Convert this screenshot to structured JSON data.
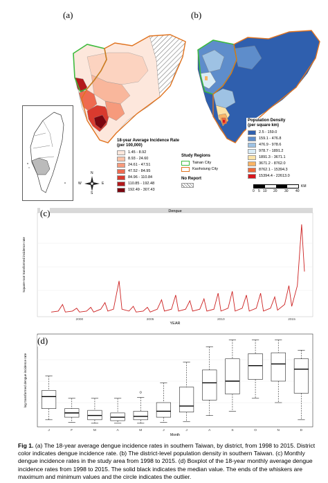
{
  "panels": {
    "a": "(a)",
    "b": "(b)",
    "c": "(c)",
    "d": "(d)"
  },
  "legend_a": {
    "title_line1": "18-year Average Incidence Rate",
    "title_line2": "(per 100,000)",
    "items": [
      {
        "label": "1.45 - 8.92",
        "color": "#fde7dc"
      },
      {
        "label": "8.93 - 24.60",
        "color": "#fbc3a8"
      },
      {
        "label": "24.61 - 47.51",
        "color": "#f69a7c"
      },
      {
        "label": "47.52 - 84.95",
        "color": "#ee6a50"
      },
      {
        "label": "84.96 - 110.84",
        "color": "#d93a2e"
      },
      {
        "label": "110.85 - 192.48",
        "color": "#b3191c"
      },
      {
        "label": "192.49 - 307.43",
        "color": "#7a0610"
      }
    ]
  },
  "study_regions": {
    "title": "Study Regions",
    "items": [
      {
        "label": "Tainan City",
        "color": "#3dbb3d"
      },
      {
        "label": "Kaohsiung City",
        "color": "#e0731f"
      }
    ],
    "no_report": "No Report"
  },
  "compass": {
    "n": "N",
    "s": "S",
    "e": "E",
    "w": "W"
  },
  "legend_b": {
    "title_line1": "Population Density",
    "title_line2": "(per square km)",
    "items": [
      {
        "label": "2.5 - 159.0",
        "color": "#2f5fae"
      },
      {
        "label": "159.1 - 476.8",
        "color": "#5e8dcb"
      },
      {
        "label": "476.9 - 978.6",
        "color": "#9ec2e4"
      },
      {
        "label": "978.7 - 1891.2",
        "color": "#d9ecf6"
      },
      {
        "label": "1891.3 - 3671.1",
        "color": "#fde3a7"
      },
      {
        "label": "3671.2 - 8762.0",
        "color": "#f9b465"
      },
      {
        "label": "8762.1 - 15394.3",
        "color": "#ef6a3b"
      },
      {
        "label": "15394.4 - 22613.0",
        "color": "#d8161e"
      }
    ]
  },
  "scalebar": {
    "unit": "KM",
    "ticks": [
      "0",
      "5",
      "10",
      "20",
      "30",
      "40"
    ]
  },
  "chart_c": {
    "strip_title": "Dengue",
    "ylabel": "Square-root transformed incidence rate",
    "xlabel": "YEAR",
    "xticks": [
      "2000",
      "2005",
      "2010",
      "2015"
    ],
    "line_color": "#cc1f1f"
  },
  "chart_d": {
    "ylabel": "log transformed dengue incidence rate",
    "xlabel": "Month",
    "months": [
      "J",
      "F",
      "M",
      "A",
      "M",
      "J",
      "J",
      "A",
      "S",
      "O",
      "N",
      "D"
    ]
  },
  "chart_data": [
    {
      "type": "line",
      "title": "Dengue",
      "xlabel": "YEAR",
      "ylabel": "Square-root transformed incidence rate",
      "xticks": [
        2000,
        2005,
        2010,
        2015
      ],
      "xlim": [
        1998,
        2016
      ],
      "ylim": [
        0,
        1
      ],
      "note": "",
      "series": [
        {
          "x": [
            1998.0,
            1998.5,
            1998.8,
            1999.0,
            1999.5,
            1999.8,
            2000.0,
            2000.5,
            2000.8,
            2001.0,
            2001.5,
            2001.8,
            2002.0,
            2002.4,
            2002.8,
            2003.0,
            2003.5,
            2003.8,
            2004.0,
            2004.5,
            2004.8,
            2005.0,
            2005.5,
            2005.8,
            2006.0,
            2006.5,
            2006.8,
            2007.0,
            2007.5,
            2007.8,
            2008.0,
            2008.5,
            2008.8,
            2009.0,
            2009.5,
            2009.8,
            2010.0,
            2010.5,
            2010.8,
            2011.0,
            2011.5,
            2011.8,
            2012.0,
            2012.5,
            2012.8,
            2013.0,
            2013.5,
            2013.8,
            2014.0,
            2014.5,
            2014.8,
            2015.0,
            2015.4,
            2015.7,
            2015.8,
            2015.9
          ],
          "y": [
            0.02,
            0.03,
            0.1,
            0.02,
            0.03,
            0.06,
            0.02,
            0.03,
            0.07,
            0.02,
            0.05,
            0.12,
            0.03,
            0.05,
            0.35,
            0.05,
            0.03,
            0.08,
            0.02,
            0.03,
            0.07,
            0.02,
            0.05,
            0.15,
            0.03,
            0.05,
            0.2,
            0.03,
            0.05,
            0.14,
            0.03,
            0.05,
            0.16,
            0.03,
            0.05,
            0.22,
            0.03,
            0.06,
            0.24,
            0.03,
            0.06,
            0.2,
            0.03,
            0.06,
            0.22,
            0.03,
            0.06,
            0.18,
            0.04,
            0.1,
            0.3,
            0.08,
            0.3,
            0.95,
            0.7,
            0.45
          ]
        }
      ]
    },
    {
      "type": "box",
      "title": "",
      "xlabel": "Month",
      "ylabel": "log transformed dengue incidence rate",
      "categories": [
        "J",
        "F",
        "M",
        "A",
        "M",
        "J",
        "J",
        "A",
        "S",
        "O",
        "N",
        "D"
      ],
      "whisker_low": [
        0.05,
        0.02,
        0.01,
        0.01,
        0.01,
        0.02,
        0.03,
        0.1,
        0.15,
        0.3,
        0.25,
        0.05
      ],
      "q1": [
        0.18,
        0.08,
        0.05,
        0.04,
        0.05,
        0.08,
        0.14,
        0.28,
        0.35,
        0.52,
        0.5,
        0.36
      ],
      "median": [
        0.32,
        0.13,
        0.1,
        0.08,
        0.09,
        0.15,
        0.21,
        0.48,
        0.5,
        0.68,
        0.7,
        0.64
      ],
      "q3": [
        0.39,
        0.18,
        0.16,
        0.13,
        0.15,
        0.25,
        0.43,
        0.63,
        0.76,
        0.82,
        0.83,
        0.76
      ],
      "whisker_high": [
        0.56,
        0.3,
        0.3,
        0.3,
        0.31,
        0.48,
        0.72,
        0.9,
        0.98,
        0.98,
        0.98,
        0.86
      ],
      "outliers": [
        [
          5,
          0.37
        ]
      ],
      "ylim": [
        0,
        1
      ]
    }
  ],
  "caption": {
    "fig": "Fig 1.",
    "text": " (a) The 18-year average dengue incidence rates in southern Taiwan, by district, from 1998 to 2015. District color indicates dengue incidence rate. (b) The district-level population density in southern Taiwan. (c) Monthly dengue incidence rates in the study area from 1998 to 2015. (d) Boxplot of the 18-year monthly average dengue incidence rates from 1998 to 2015. The solid black indicates the median value. The ends of the whiskers are maximum and minimum values and the circle indicates the outlier."
  }
}
